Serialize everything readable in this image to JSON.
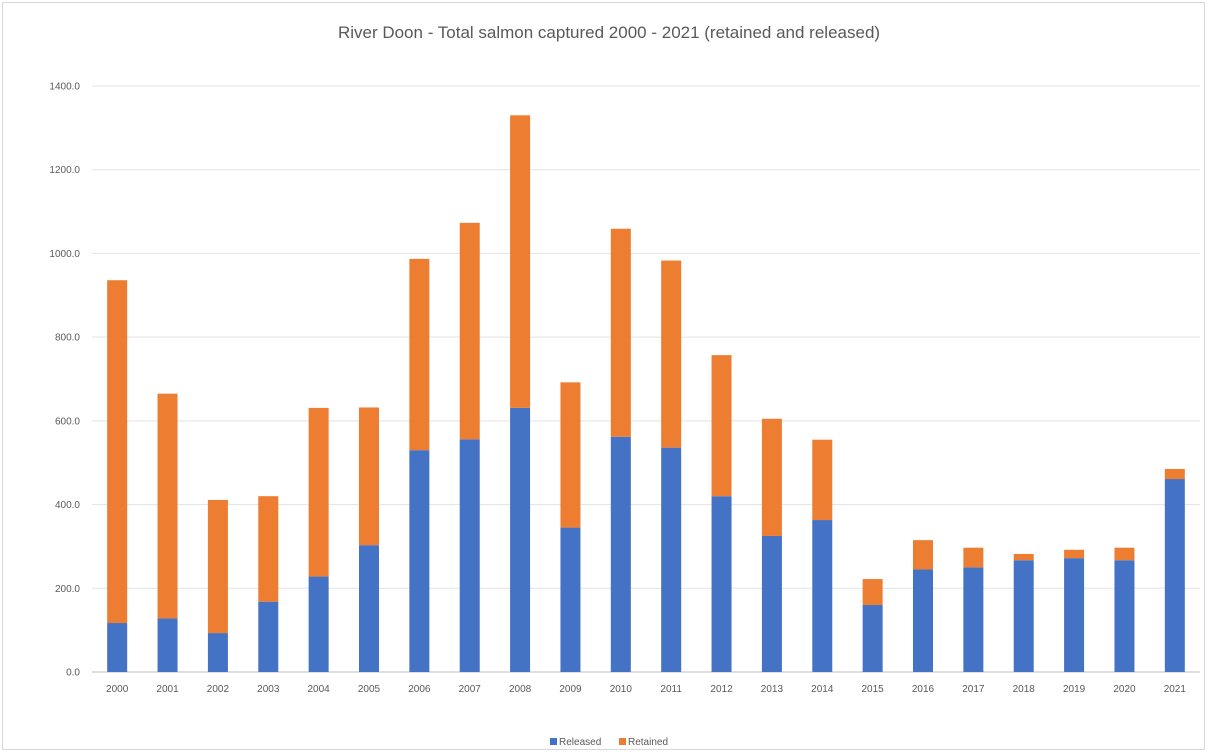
{
  "chart_data": {
    "type": "bar",
    "stacked": true,
    "title": "River Doon - Total salmon captured 2000 - 2021 (retained and released)",
    "xlabel": "",
    "ylabel": "",
    "ylim": [
      0,
      1400
    ],
    "y_ticks": [
      "0.0",
      "200.0",
      "400.0",
      "600.0",
      "800.0",
      "1000.0",
      "1200.0",
      "1400.0"
    ],
    "grid": true,
    "legend_position": "bottom",
    "categories": [
      "2000",
      "2001",
      "2002",
      "2003",
      "2004",
      "2005",
      "2006",
      "2007",
      "2008",
      "2009",
      "2010",
      "2011",
      "2012",
      "2013",
      "2014",
      "2015",
      "2016",
      "2017",
      "2018",
      "2019",
      "2020",
      "2021"
    ],
    "series": [
      {
        "name": "Released",
        "color": "#4472c4",
        "values": [
          117,
          128,
          93,
          168,
          228,
          303,
          530,
          556,
          631,
          345,
          562,
          536,
          420,
          325,
          363,
          160,
          245,
          250,
          267,
          272,
          267,
          461
        ]
      },
      {
        "name": "Retained",
        "color": "#ed7d31",
        "values": [
          819,
          537,
          318,
          252,
          403,
          329,
          457,
          517,
          699,
          347,
          497,
          447,
          337,
          280,
          192,
          62,
          70,
          47,
          15,
          20,
          30,
          24
        ]
      }
    ]
  }
}
